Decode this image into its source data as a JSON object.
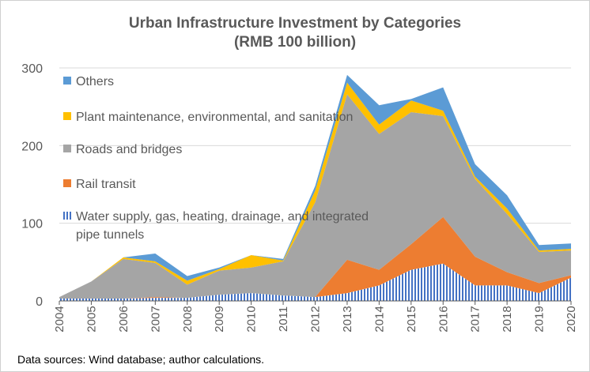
{
  "chart_data": {
    "type": "area",
    "stacked": true,
    "title_line1": "Urban Infrastructure Investment by Categories",
    "title_line2": "(RMB 100 billion)",
    "categories": [
      "2004",
      "2005",
      "2006",
      "2007",
      "2008",
      "2009",
      "2010",
      "2011",
      "2012",
      "2013",
      "2014",
      "2015",
      "2016",
      "2017",
      "2018",
      "2019",
      "2020"
    ],
    "ylim": [
      0,
      300
    ],
    "yticks": [
      0,
      100,
      200,
      300
    ],
    "grid": "horizontal",
    "legend_position": "left-inside",
    "series": [
      {
        "name": "Water supply, gas, heating, drainage, and integrated pipe tunnels",
        "legend_line1": "Water supply, gas, heating, drainage, and integrated",
        "legend_line2": "pipe tunnels",
        "color": "#4472c4",
        "pattern": "vertical-stripes",
        "values": [
          3,
          3,
          3,
          4,
          4,
          8,
          10,
          7,
          5,
          10,
          20,
          40,
          48,
          20,
          20,
          10,
          30
        ]
      },
      {
        "name": "Rail transit",
        "color": "#ed7d31",
        "values": [
          0,
          0,
          0,
          1,
          0,
          0,
          0,
          0,
          0,
          43,
          20,
          33,
          60,
          37,
          17,
          13,
          3
        ]
      },
      {
        "name": "Roads and bridges",
        "color": "#a5a5a5",
        "values": [
          2,
          22,
          51,
          44,
          17,
          31,
          33,
          44,
          122,
          213,
          175,
          170,
          130,
          100,
          75,
          40,
          32
        ]
      },
      {
        "name": "Plant maintenance, environmental, and sanitation",
        "color": "#ffc000",
        "values": [
          0,
          0,
          2,
          2,
          5,
          2,
          16,
          1,
          15,
          15,
          12,
          15,
          7,
          3,
          7,
          2,
          2
        ]
      },
      {
        "name": "Others",
        "color": "#5b9bd5",
        "values": [
          0,
          0,
          0,
          10,
          6,
          2,
          0,
          2,
          6,
          10,
          25,
          2,
          30,
          16,
          17,
          7,
          7
        ]
      }
    ],
    "legend_order": [
      4,
      3,
      2,
      1,
      0
    ]
  },
  "source_note": "Data sources: Wind database; author calculations."
}
